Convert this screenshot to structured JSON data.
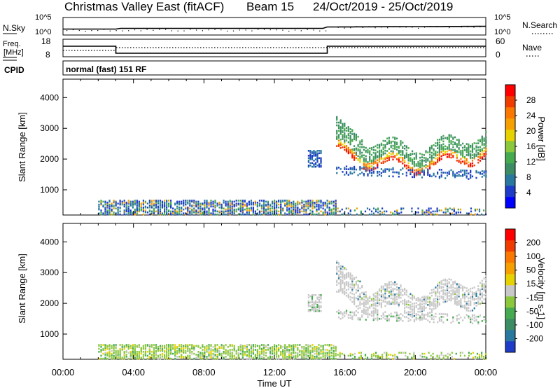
{
  "title": {
    "site": "Christmas Valley East (fitACF)",
    "beam": "Beam 15",
    "dates": "24/Oct/2019 - 25/Oct/2019"
  },
  "header_panels": {
    "nsky": {
      "label": "N.Sky",
      "right_label": "N.Search",
      "left_ticks": [
        "10^5",
        "10^0"
      ],
      "right_ticks": [
        "10^5",
        "10^0"
      ]
    },
    "freq": {
      "label_line1": "Freq.",
      "label_line2": "[MHz]",
      "right_label": "Nave",
      "left_ticks": [
        "18",
        "8"
      ],
      "right_ticks": [
        "60",
        "0"
      ]
    },
    "cpid": {
      "label": "CPID",
      "mode_text": "normal (fast) 151 RF"
    }
  },
  "x_axis": {
    "label": "Time UT",
    "ticks": [
      "00:00",
      "04:00",
      "08:00",
      "12:00",
      "16:00",
      "20:00",
      "00:00"
    ]
  },
  "power_panel": {
    "ylabel": "Slant Range [km]",
    "yticks": [
      "4000",
      "3000",
      "2000",
      "1000"
    ],
    "colorbar_label": "Power [dB]",
    "colorbar_ticks": [
      "28",
      "24",
      "20",
      "16",
      "12",
      "8",
      "4"
    ],
    "colors": [
      "#0000ff",
      "#1e3cc8",
      "#2878a0",
      "#3c8c64",
      "#46aa50",
      "#8cc83c",
      "#e6d200",
      "#f5a000",
      "#fa7800",
      "#f03c00",
      "#ff0000"
    ]
  },
  "velocity_panel": {
    "ylabel": "Slant Range [km]",
    "yticks": [
      "4000",
      "3000",
      "2000",
      "1000"
    ],
    "colorbar_label": "Velocity [m s-1]",
    "colorbar_ticks": [
      "200",
      "100",
      "50",
      "15",
      "-15",
      "-50",
      "-100",
      "-200"
    ],
    "colors": [
      "#1e3cc8",
      "#2878a0",
      "#3c8c64",
      "#46aa50",
      "#8cc83c",
      "#c8c8c8",
      "#e6d200",
      "#f5a000",
      "#fa7800",
      "#f03c00",
      "#ff0000"
    ]
  },
  "chart_data": {
    "type": "heatmap",
    "x_range_hours": [
      0,
      24
    ],
    "y_range_km": [
      180,
      4600
    ],
    "frequency_mhz": [
      {
        "start": 0,
        "end": 3,
        "value": 14
      },
      {
        "start": 3,
        "end": 15,
        "value": 10
      },
      {
        "start": 15,
        "end": 24,
        "value": 14
      }
    ],
    "echo_regions": [
      {
        "t_start": 2.0,
        "t_end": 15.5,
        "range_start": 200,
        "range_end": 650
      },
      {
        "t_start": 14.0,
        "t_end": 14.5,
        "range_start": 1700,
        "range_end": 2300
      },
      {
        "t_start": 15.5,
        "t_end": 24.0,
        "range_start": 1500,
        "range_end": 3500
      }
    ]
  }
}
